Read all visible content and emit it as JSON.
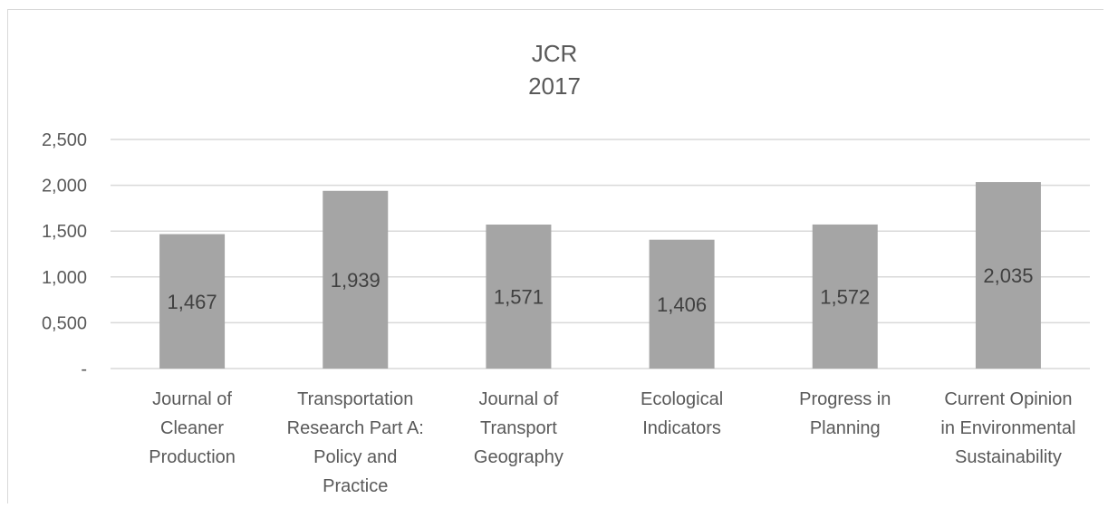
{
  "chart_data": {
    "type": "bar",
    "title_lines": [
      "JCR",
      "2017"
    ],
    "categories": [
      [
        "Journal of",
        "Cleaner",
        "Production"
      ],
      [
        "Transportation",
        "Research Part A:",
        "Policy and",
        "Practice"
      ],
      [
        "Journal of",
        "Transport",
        "Geography"
      ],
      [
        "Ecological",
        "Indicators"
      ],
      [
        "Progress in",
        "Planning"
      ],
      [
        "Current Opinion",
        "in Environmental",
        "Sustainability"
      ]
    ],
    "values": [
      1.467,
      1.939,
      1.571,
      1.406,
      1.572,
      2.035
    ],
    "value_labels": [
      "1,467",
      "1,939",
      "1,571",
      "1,406",
      "1,572",
      "2,035"
    ],
    "ylim": [
      0,
      2.5
    ],
    "y_ticks": [
      0,
      0.5,
      1.0,
      1.5,
      2.0,
      2.5
    ],
    "y_tick_labels": [
      "-",
      "0,500",
      "1,000",
      "1,500",
      "2,000",
      "2,500"
    ],
    "grid": true,
    "bar_color": "#a5a5a5",
    "grid_color": "#d9d9d9"
  }
}
